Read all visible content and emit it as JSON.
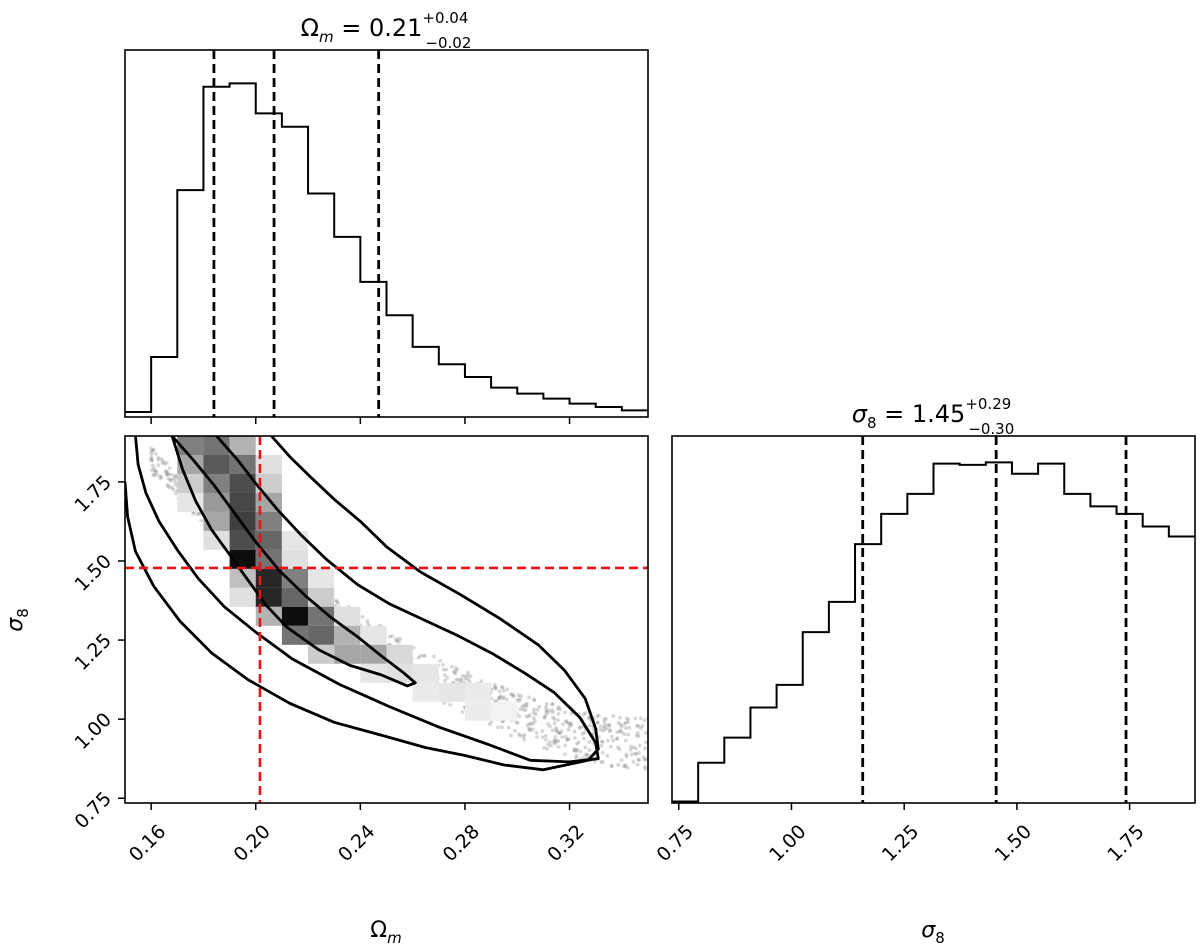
{
  "colors": {
    "hist": "#000000",
    "contour": "#000000",
    "truth": "#e8141b",
    "samples": "#8c8c8c"
  },
  "chart_data": [
    {
      "type": "bar",
      "panel": "hist-omega",
      "title": {
        "main": "Ω",
        "main_sub": "m",
        "eq": " = 0.21",
        "sup": "+0.04",
        "sub": "−0.02"
      },
      "xlim": [
        0.15,
        0.35
      ],
      "bin_edges": [
        0.15,
        0.16,
        0.17,
        0.18,
        0.19,
        0.2,
        0.21,
        0.22,
        0.23,
        0.24,
        0.25,
        0.26,
        0.27,
        0.28,
        0.29,
        0.3,
        0.31,
        0.32,
        0.33,
        0.34,
        0.35
      ],
      "values": [
        1.5,
        18.0,
        68.0,
        99.0,
        100.0,
        91.0,
        87.0,
        67.0,
        54.0,
        40.5,
        30.5,
        21.0,
        15.8,
        12.0,
        8.8,
        7.0,
        5.5,
        4.0,
        3.0,
        2.0
      ],
      "ylim": [
        0,
        110
      ],
      "quantiles": [
        0.184,
        0.207,
        0.247
      ],
      "xticks": [
        "0.16",
        "0.20",
        "0.24",
        "0.28",
        "0.32"
      ],
      "xtick_values": [
        0.16,
        0.2,
        0.24,
        0.28,
        0.32
      ]
    },
    {
      "type": "heatmap",
      "panel": "joint",
      "xlabel": {
        "main": "Ω",
        "sub": "m"
      },
      "ylabel": {
        "main": "σ",
        "sub": "8"
      },
      "xlim": [
        0.15,
        0.35
      ],
      "ylim": [
        0.735,
        1.895
      ],
      "xticks": [
        "0.16",
        "0.20",
        "0.24",
        "0.28",
        "0.32"
      ],
      "xtick_values": [
        0.16,
        0.2,
        0.24,
        0.28,
        0.32
      ],
      "yticks": [
        "0.75",
        "1.00",
        "1.25",
        "1.50",
        "1.75"
      ],
      "ytick_values": [
        0.75,
        1.0,
        1.25,
        1.5,
        1.75
      ],
      "truth": {
        "x": 0.2016,
        "y": 1.478
      },
      "cells": [
        {
          "x": 0.175,
          "y": 1.865,
          "d": 0.5
        },
        {
          "x": 0.185,
          "y": 1.865,
          "d": 0.55
        },
        {
          "x": 0.195,
          "y": 1.865,
          "d": 0.3
        },
        {
          "x": 0.175,
          "y": 1.805,
          "d": 0.35
        },
        {
          "x": 0.185,
          "y": 1.805,
          "d": 0.65
        },
        {
          "x": 0.195,
          "y": 1.805,
          "d": 0.55
        },
        {
          "x": 0.205,
          "y": 1.805,
          "d": 0.12
        },
        {
          "x": 0.175,
          "y": 1.745,
          "d": 0.2
        },
        {
          "x": 0.185,
          "y": 1.745,
          "d": 0.5
        },
        {
          "x": 0.195,
          "y": 1.745,
          "d": 0.7
        },
        {
          "x": 0.205,
          "y": 1.745,
          "d": 0.2
        },
        {
          "x": 0.175,
          "y": 1.685,
          "d": 0.1
        },
        {
          "x": 0.185,
          "y": 1.685,
          "d": 0.4
        },
        {
          "x": 0.195,
          "y": 1.685,
          "d": 0.72
        },
        {
          "x": 0.205,
          "y": 1.685,
          "d": 0.35
        },
        {
          "x": 0.185,
          "y": 1.625,
          "d": 0.35
        },
        {
          "x": 0.195,
          "y": 1.625,
          "d": 0.75
        },
        {
          "x": 0.205,
          "y": 1.625,
          "d": 0.5
        },
        {
          "x": 0.185,
          "y": 1.565,
          "d": 0.12
        },
        {
          "x": 0.195,
          "y": 1.565,
          "d": 0.7
        },
        {
          "x": 0.205,
          "y": 1.565,
          "d": 0.6
        },
        {
          "x": 0.215,
          "y": 1.565,
          "d": 0.1
        },
        {
          "x": 0.195,
          "y": 1.505,
          "d": 0.95
        },
        {
          "x": 0.205,
          "y": 1.505,
          "d": 0.55
        },
        {
          "x": 0.215,
          "y": 1.505,
          "d": 0.12
        },
        {
          "x": 0.195,
          "y": 1.445,
          "d": 0.25
        },
        {
          "x": 0.205,
          "y": 1.445,
          "d": 0.85
        },
        {
          "x": 0.215,
          "y": 1.445,
          "d": 0.5
        },
        {
          "x": 0.225,
          "y": 1.445,
          "d": 0.1
        },
        {
          "x": 0.195,
          "y": 1.385,
          "d": 0.12
        },
        {
          "x": 0.205,
          "y": 1.385,
          "d": 0.85
        },
        {
          "x": 0.215,
          "y": 1.385,
          "d": 0.6
        },
        {
          "x": 0.225,
          "y": 1.385,
          "d": 0.2
        },
        {
          "x": 0.205,
          "y": 1.325,
          "d": 0.3
        },
        {
          "x": 0.215,
          "y": 1.325,
          "d": 0.95
        },
        {
          "x": 0.225,
          "y": 1.325,
          "d": 0.55
        },
        {
          "x": 0.235,
          "y": 1.325,
          "d": 0.12
        },
        {
          "x": 0.215,
          "y": 1.265,
          "d": 0.55
        },
        {
          "x": 0.225,
          "y": 1.265,
          "d": 0.6
        },
        {
          "x": 0.235,
          "y": 1.265,
          "d": 0.3
        },
        {
          "x": 0.245,
          "y": 1.265,
          "d": 0.1
        },
        {
          "x": 0.225,
          "y": 1.205,
          "d": 0.2
        },
        {
          "x": 0.235,
          "y": 1.205,
          "d": 0.35
        },
        {
          "x": 0.245,
          "y": 1.205,
          "d": 0.35
        },
        {
          "x": 0.255,
          "y": 1.205,
          "d": 0.15
        },
        {
          "x": 0.245,
          "y": 1.145,
          "d": 0.1
        },
        {
          "x": 0.255,
          "y": 1.145,
          "d": 0.12
        },
        {
          "x": 0.265,
          "y": 1.145,
          "d": 0.1
        },
        {
          "x": 0.265,
          "y": 1.085,
          "d": 0.08
        },
        {
          "x": 0.275,
          "y": 1.085,
          "d": 0.1
        },
        {
          "x": 0.285,
          "y": 1.085,
          "d": 0.08
        },
        {
          "x": 0.285,
          "y": 1.025,
          "d": 0.07
        },
        {
          "x": 0.295,
          "y": 1.025,
          "d": 0.05
        }
      ],
      "contours": [
        [
          [
            0.168,
            1.895
          ],
          [
            0.176,
            1.82
          ],
          [
            0.184,
            1.74
          ],
          [
            0.192,
            1.65
          ],
          [
            0.2,
            1.56
          ],
          [
            0.209,
            1.47
          ],
          [
            0.219,
            1.39
          ],
          [
            0.229,
            1.32
          ],
          [
            0.239,
            1.26
          ],
          [
            0.248,
            1.2
          ],
          [
            0.256,
            1.15
          ],
          [
            0.261,
            1.115
          ],
          [
            0.258,
            1.105
          ],
          [
            0.248,
            1.14
          ],
          [
            0.236,
            1.17
          ],
          [
            0.224,
            1.22
          ],
          [
            0.212,
            1.29
          ],
          [
            0.204,
            1.36
          ],
          [
            0.197,
            1.44
          ],
          [
            0.19,
            1.52
          ],
          [
            0.183,
            1.6
          ],
          [
            0.177,
            1.69
          ],
          [
            0.172,
            1.79
          ],
          [
            0.168,
            1.895
          ]
        ],
        [
          [
            0.185,
            1.895
          ],
          [
            0.193,
            1.82
          ],
          [
            0.2,
            1.745
          ],
          [
            0.208,
            1.665
          ],
          [
            0.217,
            1.585
          ],
          [
            0.227,
            1.505
          ],
          [
            0.239,
            1.425
          ],
          [
            0.251,
            1.365
          ],
          [
            0.264,
            1.315
          ],
          [
            0.277,
            1.265
          ],
          [
            0.291,
            1.205
          ],
          [
            0.303,
            1.145
          ],
          [
            0.314,
            1.085
          ],
          [
            0.324,
            1.005
          ],
          [
            0.33,
            0.925
          ],
          [
            0.331,
            0.875
          ],
          [
            0.32,
            0.865
          ],
          [
            0.305,
            0.87
          ],
          [
            0.289,
            0.92
          ],
          [
            0.27,
            0.975
          ],
          [
            0.251,
            1.04
          ],
          [
            0.232,
            1.11
          ],
          [
            0.214,
            1.19
          ],
          [
            0.2,
            1.275
          ],
          [
            0.188,
            1.355
          ],
          [
            0.178,
            1.445
          ],
          [
            0.17,
            1.535
          ],
          [
            0.163,
            1.625
          ],
          [
            0.158,
            1.715
          ],
          [
            0.155,
            1.805
          ],
          [
            0.154,
            1.895
          ]
        ],
        [
          [
            0.206,
            1.895
          ],
          [
            0.213,
            1.83
          ],
          [
            0.221,
            1.765
          ],
          [
            0.23,
            1.695
          ],
          [
            0.24,
            1.625
          ],
          [
            0.25,
            1.545
          ],
          [
            0.263,
            1.465
          ],
          [
            0.278,
            1.395
          ],
          [
            0.293,
            1.32
          ],
          [
            0.308,
            1.235
          ],
          [
            0.318,
            1.155
          ],
          [
            0.326,
            1.065
          ],
          [
            0.33,
            0.97
          ],
          [
            0.331,
            0.905
          ],
          [
            0.327,
            0.87
          ],
          [
            0.31,
            0.84
          ],
          [
            0.295,
            0.855
          ],
          [
            0.28,
            0.885
          ],
          [
            0.265,
            0.91
          ],
          [
            0.25,
            0.945
          ],
          [
            0.23,
            0.99
          ],
          [
            0.213,
            1.05
          ],
          [
            0.197,
            1.125
          ],
          [
            0.183,
            1.21
          ],
          [
            0.171,
            1.31
          ],
          [
            0.161,
            1.42
          ],
          [
            0.154,
            1.53
          ],
          [
            0.151,
            1.64
          ],
          [
            0.15,
            1.75
          ]
        ]
      ]
    },
    {
      "type": "bar",
      "panel": "hist-sigma",
      "title": {
        "main": "σ",
        "main_sub": "8",
        "eq": " = 1.45",
        "sup": "+0.29",
        "sub": "−0.30"
      },
      "xlabel": {
        "main": "σ",
        "sub": "8"
      },
      "xlim": [
        0.735,
        1.895
      ],
      "bin_edges": [
        0.735,
        0.793,
        0.851,
        0.909,
        0.967,
        1.025,
        1.083,
        1.141,
        1.199,
        1.257,
        1.315,
        1.373,
        1.431,
        1.489,
        1.547,
        1.605,
        1.663,
        1.721,
        1.779,
        1.837,
        1.895
      ],
      "values": [
        0.6,
        16.0,
        26.0,
        38.0,
        47.0,
        68.0,
        80.0,
        103.0,
        115.0,
        123.0,
        135.0,
        134.5,
        135.5,
        131.0,
        135.0,
        123.0,
        118.0,
        115.0,
        110.0,
        106.0
      ],
      "ylim": [
        0,
        146
      ],
      "quantiles": [
        1.158,
        1.454,
        1.742
      ],
      "xticks": [
        "0.75",
        "1.00",
        "1.25",
        "1.50",
        "1.75"
      ],
      "xtick_values": [
        0.75,
        1.0,
        1.25,
        1.5,
        1.75
      ]
    }
  ]
}
